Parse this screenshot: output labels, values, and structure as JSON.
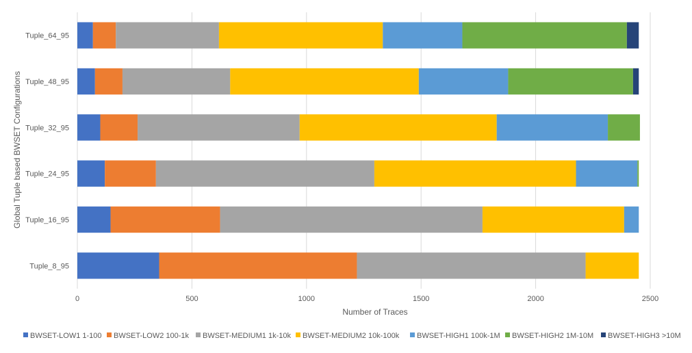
{
  "chart_data": {
    "type": "bar",
    "orientation": "horizontal",
    "stacked": true,
    "title": "",
    "xlabel": "Number  of Traces",
    "ylabel": "Global Tuple based BWSET Configurations",
    "xlim": [
      0,
      2500
    ],
    "x_ticks": [
      "0",
      "500",
      "1000",
      "1500",
      "2000",
      "2500"
    ],
    "grid": "vertical",
    "legend_position": "bottom",
    "categories": [
      "Tuple_8_95",
      "Tuple_16_95",
      "Tuple_24_95",
      "Tuple_32_95",
      "Tuple_48_95",
      "Tuple_64_95"
    ],
    "series": [
      {
        "name": "BWSET-LOW1 1-100",
        "color": "#4472C4",
        "values": [
          357,
          145,
          120,
          100,
          77,
          68
        ]
      },
      {
        "name": "BWSET-LOW2 100-1k",
        "color": "#ED7D31",
        "values": [
          863,
          478,
          223,
          163,
          120,
          100
        ]
      },
      {
        "name": "BWSET-MEDIUM1 1k-10k",
        "color": "#A5A5A5",
        "values": [
          998,
          1145,
          953,
          707,
          470,
          450
        ]
      },
      {
        "name": "BWSET-MEDIUM2  10k-100k",
        "color": "#FFC000",
        "values": [
          232,
          618,
          880,
          860,
          823,
          715
        ]
      },
      {
        "name": "BWSET-HIGH1 100k-1M",
        "color": "#5B9BD5",
        "values": [
          0,
          64,
          268,
          485,
          390,
          347
        ]
      },
      {
        "name": "BWSET-HIGH2 1M-10M",
        "color": "#70AD47",
        "values": [
          0,
          0,
          6,
          140,
          545,
          718
        ]
      },
      {
        "name": "BWSET-HIGH3 >10M",
        "color": "#264478",
        "values": [
          0,
          0,
          0,
          0,
          25,
          52
        ]
      }
    ]
  }
}
